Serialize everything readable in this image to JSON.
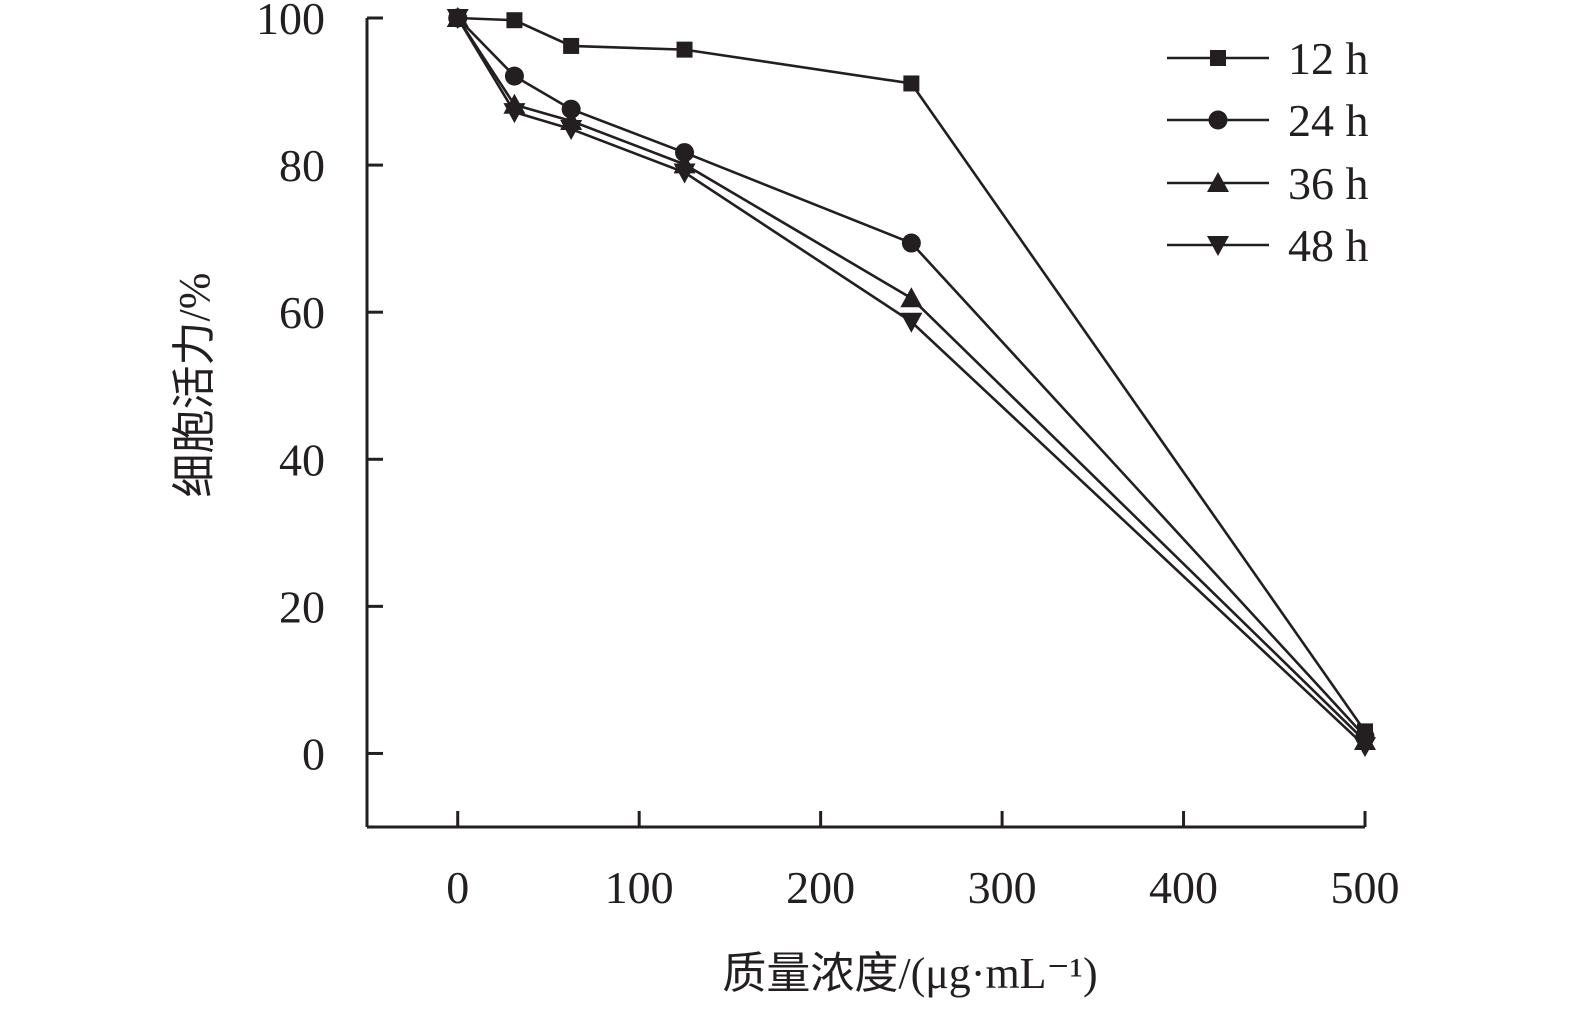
{
  "chart_data": {
    "type": "line",
    "title": "",
    "xlabel": "质量浓度/(μg·mL⁻¹)",
    "ylabel": "细胞活力/%",
    "xlim": [
      -50,
      500
    ],
    "ylim": [
      -10,
      100
    ],
    "xticks": [
      0,
      100,
      200,
      300,
      400,
      500
    ],
    "yticks": [
      0,
      20,
      40,
      60,
      80,
      100
    ],
    "x": [
      0,
      31.25,
      62.5,
      125,
      250,
      500
    ],
    "series": [
      {
        "name": "12 h",
        "marker": "square",
        "values": [
          100,
          99.7,
          96.2,
          95.7,
          91.1,
          3.0
        ]
      },
      {
        "name": "24 h",
        "marker": "circle",
        "values": [
          100,
          92.1,
          87.6,
          81.7,
          69.4,
          2.3
        ]
      },
      {
        "name": "36 h",
        "marker": "triangle-up",
        "values": [
          100,
          88.2,
          86.0,
          80.1,
          61.9,
          1.7
        ]
      },
      {
        "name": "48 h",
        "marker": "triangle-down",
        "values": [
          100,
          87.2,
          84.9,
          79.0,
          58.7,
          1.0
        ]
      }
    ],
    "grid": false,
    "legend_position": "top-right",
    "color": "#231f20"
  }
}
